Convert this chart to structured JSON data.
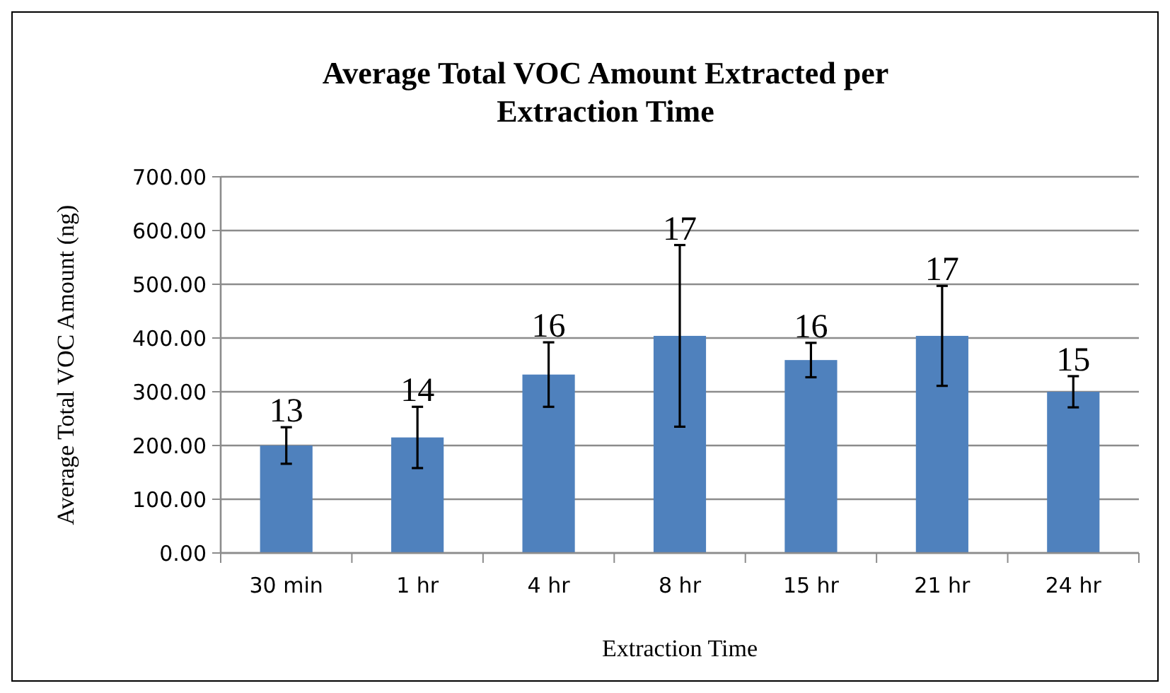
{
  "chart_data": {
    "type": "bar",
    "title": "Average Total VOC Amount Extracted per Extraction Time",
    "xlabel": "Extraction Time",
    "ylabel": "Average Total VOC Amount (ng)",
    "categories": [
      "30 min",
      "1 hr",
      "4 hr",
      "8 hr",
      "15 hr",
      "21 hr",
      "24 hr"
    ],
    "values": [
      200,
      215,
      332,
      404,
      359,
      404,
      300
    ],
    "errors": [
      34,
      57,
      60,
      169,
      32,
      93,
      29
    ],
    "color": "#4f81bd",
    "annotations": [
      {
        "text": "13",
        "x": "30 min",
        "y": 234
      },
      {
        "text": "14",
        "x": "1 hr",
        "y": 272
      },
      {
        "text": "16",
        "x": "4 hr",
        "y": 392
      },
      {
        "text": "17",
        "x": "8 hr",
        "y": 573
      },
      {
        "text": "16",
        "x": "15 hr",
        "y": 391
      },
      {
        "text": "17",
        "x": "21 hr",
        "y": 497
      },
      {
        "text": "15",
        "x": "24 hr",
        "y": 329
      }
    ],
    "ylim": [
      0,
      700
    ],
    "yticks": [
      {
        "value": 0,
        "label": "0.00"
      },
      {
        "value": 100,
        "label": "100.00"
      },
      {
        "value": 200,
        "label": "200.00"
      },
      {
        "value": 300,
        "label": "300.00"
      },
      {
        "value": 400,
        "label": "400.00"
      },
      {
        "value": 500,
        "label": "500.00"
      },
      {
        "value": 600,
        "label": "600.00"
      },
      {
        "value": 700,
        "label": "700.00"
      }
    ],
    "grid": "y"
  }
}
